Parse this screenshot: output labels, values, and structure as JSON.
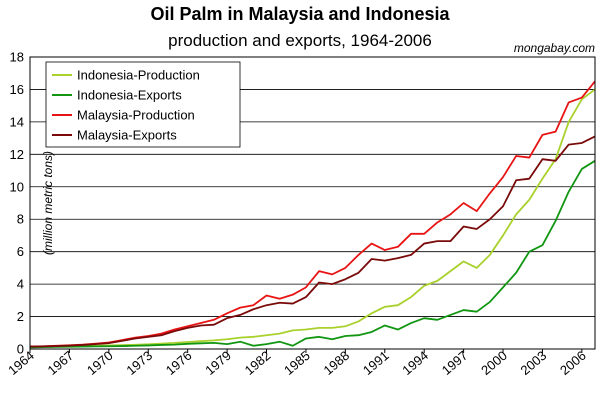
{
  "chart_data": {
    "type": "line",
    "title": "Oil Palm in Malaysia and Indonesia",
    "subtitle": "production and exports, 1964-2006",
    "credit": "mongabay.com",
    "ylabel": "(million metric tons)",
    "xlabel": "",
    "xlim": [
      1964,
      2007
    ],
    "ylim": [
      0,
      18
    ],
    "x_ticks": [
      1964,
      1967,
      1970,
      1973,
      1976,
      1979,
      1982,
      1985,
      1988,
      1991,
      1994,
      1997,
      2000,
      2003,
      2006
    ],
    "y_ticks": [
      0,
      2,
      4,
      6,
      8,
      10,
      12,
      14,
      16,
      18
    ],
    "grid": "horizontal",
    "legend_position": "top-left",
    "x": [
      1964,
      1965,
      1966,
      1967,
      1968,
      1969,
      1970,
      1971,
      1972,
      1973,
      1974,
      1975,
      1976,
      1977,
      1978,
      1979,
      1980,
      1981,
      1982,
      1983,
      1984,
      1985,
      1986,
      1987,
      1988,
      1989,
      1990,
      1991,
      1992,
      1993,
      1994,
      1995,
      1996,
      1997,
      1998,
      1999,
      2000,
      2001,
      2002,
      2003,
      2004,
      2005,
      2006,
      2007
    ],
    "series": [
      {
        "name": "Indonesia-Production",
        "color": "#a8d12b",
        "values": [
          0.15,
          0.16,
          0.17,
          0.18,
          0.19,
          0.2,
          0.22,
          0.24,
          0.26,
          0.29,
          0.33,
          0.38,
          0.43,
          0.48,
          0.53,
          0.6,
          0.7,
          0.75,
          0.85,
          0.95,
          1.15,
          1.2,
          1.3,
          1.3,
          1.4,
          1.7,
          2.2,
          2.6,
          2.7,
          3.2,
          3.9,
          4.2,
          4.8,
          5.4,
          5.0,
          5.8,
          7.0,
          8.3,
          9.2,
          10.5,
          11.7,
          14.0,
          15.4,
          16.0
        ]
      },
      {
        "name": "Indonesia-Exports",
        "color": "#129612",
        "values": [
          0.1,
          0.12,
          0.13,
          0.14,
          0.15,
          0.16,
          0.17,
          0.18,
          0.2,
          0.22,
          0.25,
          0.27,
          0.32,
          0.35,
          0.38,
          0.3,
          0.45,
          0.2,
          0.3,
          0.45,
          0.2,
          0.65,
          0.75,
          0.6,
          0.8,
          0.85,
          1.05,
          1.45,
          1.2,
          1.6,
          1.9,
          1.8,
          2.1,
          2.4,
          2.3,
          2.9,
          3.8,
          4.7,
          6.0,
          6.4,
          7.9,
          9.7,
          11.1,
          11.6
        ]
      },
      {
        "name": "Malaysia-Production",
        "color": "#e81414",
        "values": [
          0.15,
          0.17,
          0.2,
          0.23,
          0.27,
          0.33,
          0.4,
          0.55,
          0.7,
          0.8,
          0.95,
          1.2,
          1.4,
          1.6,
          1.8,
          2.2,
          2.55,
          2.7,
          3.3,
          3.1,
          3.35,
          3.8,
          4.8,
          4.6,
          5.0,
          5.8,
          6.5,
          6.1,
          6.3,
          7.1,
          7.1,
          7.8,
          8.3,
          9.0,
          8.5,
          9.6,
          10.6,
          11.9,
          11.8,
          13.2,
          13.4,
          15.2,
          15.5,
          16.5
        ]
      },
      {
        "name": "Malaysia-Exports",
        "color": "#7a0a0a",
        "values": [
          0.15,
          0.16,
          0.18,
          0.21,
          0.25,
          0.3,
          0.36,
          0.5,
          0.65,
          0.75,
          0.85,
          1.1,
          1.3,
          1.45,
          1.5,
          1.9,
          2.1,
          2.45,
          2.7,
          2.85,
          2.8,
          3.2,
          4.1,
          4.0,
          4.3,
          4.7,
          5.55,
          5.45,
          5.6,
          5.8,
          6.5,
          6.65,
          6.65,
          7.55,
          7.4,
          8.0,
          8.8,
          10.4,
          10.5,
          11.7,
          11.6,
          12.6,
          12.7,
          13.1
        ]
      }
    ]
  },
  "colors": {
    "plot_border": "#000000",
    "grid": "#000000",
    "legend_border": "#000000"
  }
}
